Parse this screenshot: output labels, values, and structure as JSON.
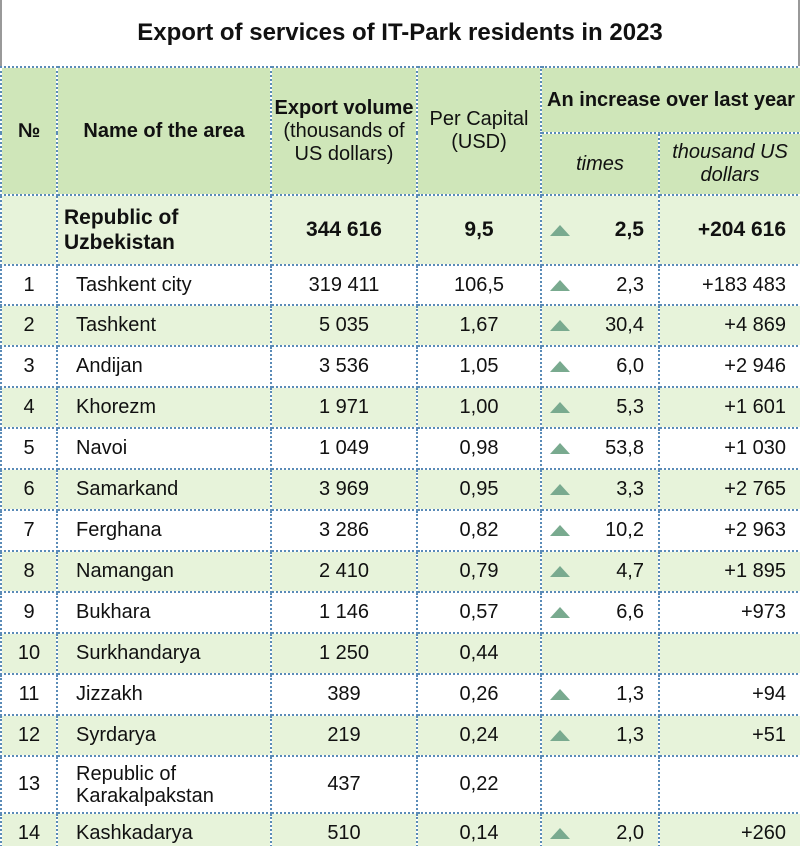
{
  "title": "Export of services of IT-Park residents in 2023",
  "colors": {
    "header_bg": "#cfe6b9",
    "stripe_bg": "#e7f3da",
    "border": "#5a8bb7",
    "arrow": "#79aa8f"
  },
  "headers": {
    "num": "№",
    "area": "Name of the area",
    "export_title": "Export volume",
    "export_unit": "(thousands of US dollars)",
    "per_capita": "Per Capital (USD)",
    "increase": "An increase over last year",
    "times": "times",
    "thousand": "thousand US dollars"
  },
  "total": {
    "area": "Republic of Uzbekistan",
    "export": "344 616",
    "per_capita": "9,5",
    "times": "2,5",
    "increase": "+204 616",
    "arrow": "up-triangle-icon"
  },
  "rows": [
    {
      "num": "1",
      "area": "Tashkent city",
      "export": "319 411",
      "per_capita": "106,5",
      "times": "2,3",
      "increase": "+183 483"
    },
    {
      "num": "2",
      "area": "Tashkent",
      "export": "5 035",
      "per_capita": "1,67",
      "times": "30,4",
      "increase": "+4 869"
    },
    {
      "num": "3",
      "area": "Andijan",
      "export": "3 536",
      "per_capita": "1,05",
      "times": "6,0",
      "increase": "+2 946"
    },
    {
      "num": "4",
      "area": "Khorezm",
      "export": "1 971",
      "per_capita": "1,00",
      "times": "5,3",
      "increase": "+1 601"
    },
    {
      "num": "5",
      "area": "Navoi",
      "export": "1 049",
      "per_capita": "0,98",
      "times": "53,8",
      "increase": "+1 030"
    },
    {
      "num": "6",
      "area": "Samarkand",
      "export": "3 969",
      "per_capita": "0,95",
      "times": "3,3",
      "increase": "+2 765"
    },
    {
      "num": "7",
      "area": "Ferghana",
      "export": "3 286",
      "per_capita": "0,82",
      "times": "10,2",
      "increase": "+2 963"
    },
    {
      "num": "8",
      "area": "Namangan",
      "export": "2 410",
      "per_capita": "0,79",
      "times": "4,7",
      "increase": "+1 895"
    },
    {
      "num": "9",
      "area": "Bukhara",
      "export": "1 146",
      "per_capita": "0,57",
      "times": "6,6",
      "increase": "+973"
    },
    {
      "num": "10",
      "area": "Surkhandarya",
      "export": "1 250",
      "per_capita": "0,44",
      "times": "",
      "increase": ""
    },
    {
      "num": "11",
      "area": "Jizzakh",
      "export": "389",
      "per_capita": "0,26",
      "times": "1,3",
      "increase": "+94"
    },
    {
      "num": "12",
      "area": "Syrdarya",
      "export": "219",
      "per_capita": "0,24",
      "times": "1,3",
      "increase": "+51"
    },
    {
      "num": "13",
      "area": "Republic of Karakalpakstan",
      "export": "437",
      "per_capita": "0,22",
      "times": "",
      "increase": ""
    },
    {
      "num": "14",
      "area": "Kashkadarya",
      "export": "510",
      "per_capita": "0,14",
      "times": "2,0",
      "increase": "+260"
    }
  ]
}
